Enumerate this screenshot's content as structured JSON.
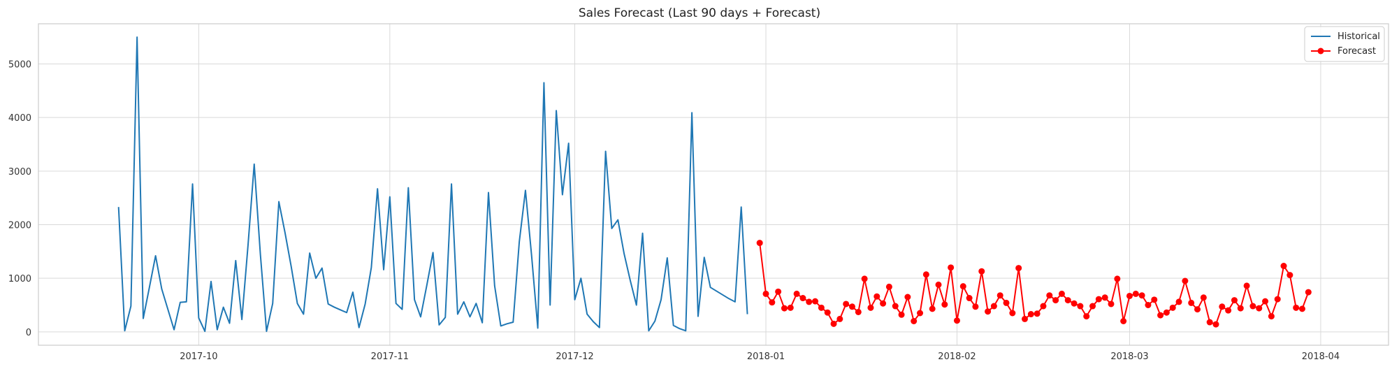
{
  "chart_data": {
    "type": "line",
    "title": "Sales Forecast (Last 90 days + Forecast)",
    "xlabel": "",
    "ylabel": "",
    "grid": true,
    "legend_position": "top-right",
    "x_axis": {
      "type": "date",
      "range": [
        "2017-09-05",
        "2018-04-12"
      ],
      "ticks": [
        "2017-10-01",
        "2017-11-01",
        "2017-12-01",
        "2018-01-01",
        "2018-02-01",
        "2018-03-01",
        "2018-04-01"
      ],
      "tick_labels": [
        "2017-10",
        "2017-11",
        "2017-12",
        "2018-01",
        "2018-02",
        "2018-03",
        "2018-04"
      ]
    },
    "y_axis": {
      "range": [
        -250,
        5750
      ],
      "ticks": [
        0,
        1000,
        2000,
        3000,
        4000,
        5000
      ],
      "tick_labels": [
        "0",
        "1000",
        "2000",
        "3000",
        "4000",
        "5000"
      ]
    },
    "series": [
      {
        "name": "Historical",
        "color": "#1f77b4",
        "marker": "none",
        "start_date": "2017-09-18",
        "values": [
          2330,
          20,
          480,
          5500,
          250,
          830,
          1420,
          800,
          420,
          40,
          550,
          560,
          2760,
          260,
          10,
          940,
          40,
          460,
          160,
          1330,
          230,
          1620,
          3130,
          1450,
          10,
          530,
          2430,
          1850,
          1220,
          530,
          330,
          1470,
          1000,
          1190,
          520,
          460,
          410,
          360,
          740,
          80,
          520,
          1200,
          2670,
          1160,
          2520,
          530,
          420,
          2690,
          600,
          280,
          870,
          1480,
          130,
          270,
          2760,
          330,
          560,
          280,
          530,
          170,
          2600,
          860,
          110,
          150,
          180,
          1680,
          2640,
          1420,
          70,
          4650,
          500,
          4130,
          2560,
          3520,
          600,
          1000,
          330,
          190,
          80,
          3370,
          1930,
          2090,
          1460,
          960,
          500,
          1840,
          20,
          200,
          600,
          1380,
          120,
          60,
          20,
          4090,
          290,
          1390,
          830,
          760,
          690,
          620,
          560,
          2330,
          330
        ]
      },
      {
        "name": "Forecast",
        "color": "#ff0000",
        "marker": "circle",
        "start_date": "2017-12-31",
        "values": [
          1660,
          710,
          550,
          750,
          440,
          450,
          710,
          630,
          560,
          570,
          450,
          360,
          150,
          240,
          520,
          470,
          370,
          990,
          450,
          660,
          530,
          840,
          480,
          320,
          650,
          200,
          350,
          1070,
          430,
          880,
          510,
          1200,
          210,
          850,
          630,
          470,
          1130,
          380,
          480,
          680,
          540,
          350,
          1190,
          240,
          330,
          340,
          480,
          680,
          590,
          710,
          590,
          530,
          480,
          290,
          480,
          610,
          640,
          520,
          990,
          200,
          670,
          710,
          680,
          500,
          600,
          310,
          360,
          450,
          560,
          950,
          540,
          420,
          640,
          180,
          140,
          470,
          400,
          590,
          440,
          860,
          480,
          440,
          570,
          290,
          610,
          1230,
          1060,
          450,
          430,
          740
        ]
      }
    ]
  }
}
